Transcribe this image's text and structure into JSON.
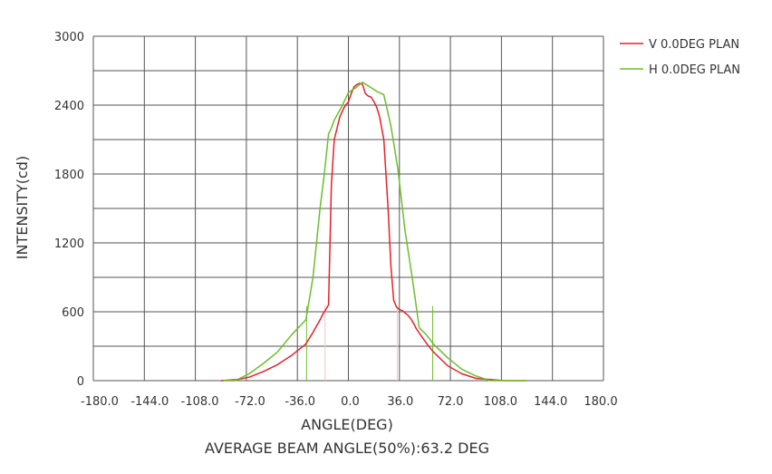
{
  "chart_data": {
    "type": "line",
    "xlabel": "ANGLE(DEG)",
    "subtitle": "AVERAGE BEAM ANGLE(50%):63.2 DEG",
    "ylabel": "INTENSITY(cd)",
    "xlim": [
      -180,
      180
    ],
    "ylim": [
      0,
      3000
    ],
    "x_ticks": [
      -180.0,
      -144.0,
      -108.0,
      -72.0,
      -36.0,
      0.0,
      36.0,
      72.0,
      108.0,
      144.0,
      180.0
    ],
    "x_tick_labels": [
      "-180.0",
      "-144.0",
      "-108.0",
      "-72.0",
      "-36.0",
      "0.0",
      "36.0",
      "72.0",
      "108.0",
      "144.0",
      "180.0"
    ],
    "y_ticks": [
      0,
      600,
      1200,
      1800,
      2400,
      3000
    ],
    "y_tick_labels": [
      "0",
      "600",
      "1200",
      "1800",
      "2400",
      "3000"
    ],
    "grid": true,
    "legend_position": "top-right",
    "series": [
      {
        "name": "V 0.0DEG PLAN",
        "color": "#e8202a",
        "x": [
          -90,
          -78,
          -70,
          -60,
          -50,
          -40,
          -30,
          -25,
          -20,
          -18,
          -16,
          -14,
          -12,
          -10,
          -8,
          -6,
          -3,
          0,
          2,
          4,
          6,
          8,
          10,
          12,
          14,
          16,
          18,
          20,
          22,
          25,
          28,
          30,
          32,
          34,
          36,
          38,
          40,
          42,
          44,
          46,
          48,
          52,
          56,
          60,
          70,
          80,
          90,
          100,
          110,
          120,
          126
        ],
        "values": [
          0,
          10,
          30,
          80,
          140,
          220,
          320,
          420,
          530,
          580,
          620,
          660,
          1700,
          2100,
          2200,
          2300,
          2380,
          2430,
          2500,
          2560,
          2580,
          2590,
          2580,
          2500,
          2480,
          2470,
          2430,
          2380,
          2300,
          2100,
          1500,
          1000,
          700,
          640,
          620,
          610,
          590,
          570,
          540,
          500,
          450,
          380,
          310,
          250,
          130,
          60,
          20,
          10,
          0,
          0,
          0
        ]
      },
      {
        "name": "H 0.0DEG PLAN",
        "color": "#6cbf2c",
        "x": [
          -88,
          -80,
          -70,
          -60,
          -50,
          -40,
          -30,
          -25,
          -20,
          -17,
          -14,
          -12,
          -10,
          -5,
          0,
          5,
          8,
          10,
          15,
          20,
          25,
          30,
          35,
          40,
          45,
          50,
          55,
          60,
          70,
          80,
          90,
          100,
          110,
          120,
          126
        ],
        "values": [
          0,
          0,
          60,
          150,
          250,
          400,
          530,
          900,
          1500,
          1800,
          2150,
          2200,
          2270,
          2380,
          2510,
          2550,
          2580,
          2600,
          2560,
          2520,
          2490,
          2220,
          1840,
          1300,
          900,
          460,
          400,
          320,
          200,
          100,
          40,
          0,
          0,
          0,
          0
        ]
      }
    ]
  },
  "markers": [
    {
      "x": -29.5,
      "color": "#6cbf2c"
    },
    {
      "x": -16.5,
      "color": "#f4c4c8"
    },
    {
      "x": 34.5,
      "color": "#f4c4c8"
    },
    {
      "x": 59.5,
      "color": "#6cbf2c"
    }
  ]
}
